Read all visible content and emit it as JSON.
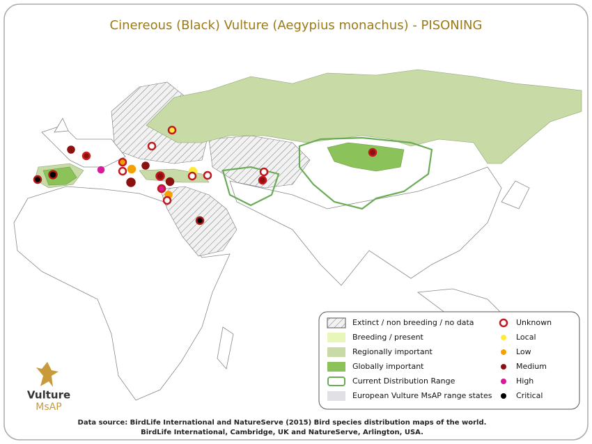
{
  "title": "Cinereous (Black) Vulture (Aegypius monachus) - PISONING",
  "legend": {
    "areas": [
      "Extinct / non breeding / no data",
      "Breeding / present",
      "Regionally important",
      "Globally important",
      "Current Distribution Range",
      "European Vulture MsAP range states"
    ],
    "threats": [
      "Unknown",
      "Local",
      "Low",
      "Medium",
      "High",
      "Critical"
    ]
  },
  "logo": {
    "name": "Vulture",
    "sub": "MsAP"
  },
  "source": [
    "Data source: BirdLife International and NatureServe (2015) Bird species distribution maps of the world.",
    "BirdLife International, Cambridge, UK and NatureServe, Arlington, USA."
  ]
}
